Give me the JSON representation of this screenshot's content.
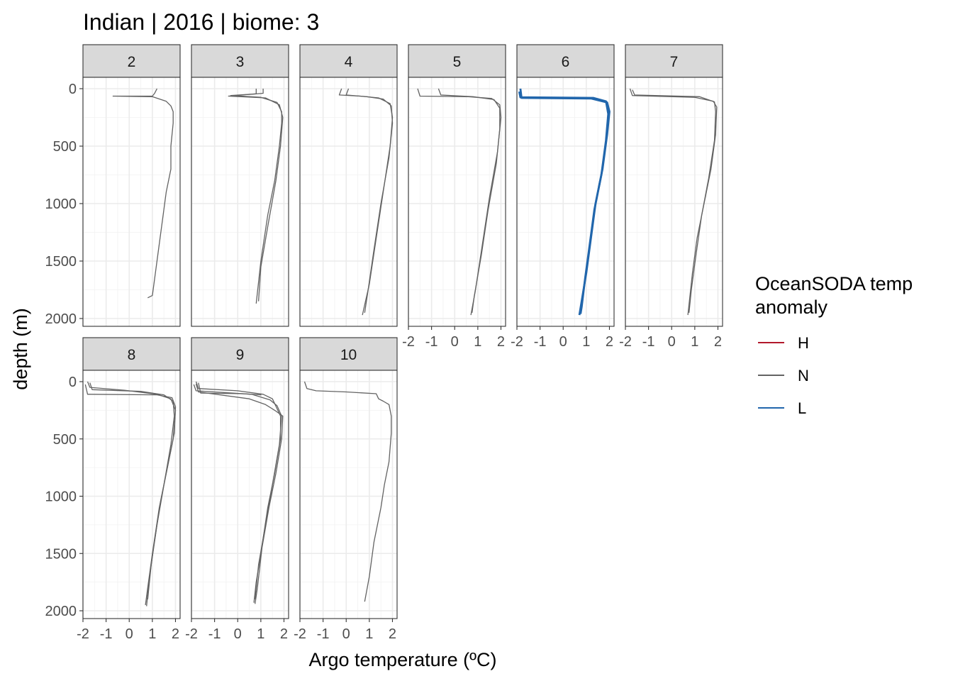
{
  "title": "Indian | 2016 | biome: 3",
  "xlabel": "Argo temperature (ºC)",
  "ylabel": "depth (m)",
  "legend": {
    "title_lines": [
      "OceanSODA temp",
      "anomaly"
    ],
    "items": [
      {
        "label": "H",
        "color": "#b2182b"
      },
      {
        "label": "N",
        "color": "#636363"
      },
      {
        "label": "L",
        "color": "#2166ac"
      }
    ]
  },
  "chart_data": {
    "type": "line",
    "facet_by": "month",
    "x_axis": {
      "label": "Argo temperature (ºC)",
      "range": [
        -2,
        2.2
      ],
      "ticks": [
        -2,
        -1,
        0,
        1,
        2
      ]
    },
    "y_axis": {
      "label": "depth (m)",
      "range": [
        2000,
        0
      ],
      "reversed": true,
      "ticks": [
        0,
        500,
        1000,
        1500,
        2000
      ]
    },
    "grid": true,
    "legend_position": "right",
    "legend_title": "OceanSODA temp anomaly",
    "legend_entries": [
      "H",
      "N",
      "L"
    ],
    "panels": [
      {
        "label": "2",
        "profiles": [
          {
            "anomaly": "N",
            "points": [
              [
                1.2,
                0
              ],
              [
                1.1,
                40
              ],
              [
                1.0,
                65
              ],
              [
                -0.7,
                65
              ],
              [
                1.0,
                70
              ],
              [
                1.6,
                110
              ],
              [
                1.8,
                150
              ],
              [
                1.9,
                200
              ],
              [
                1.9,
                300
              ],
              [
                1.8,
                500
              ],
              [
                1.8,
                700
              ],
              [
                1.6,
                900
              ],
              [
                1.4,
                1200
              ],
              [
                1.2,
                1500
              ],
              [
                1.0,
                1800
              ],
              [
                0.8,
                1820
              ]
            ]
          }
        ]
      },
      {
        "label": "3",
        "profiles": [
          {
            "anomaly": "N",
            "points": [
              [
                0.8,
                0
              ],
              [
                0.8,
                45
              ],
              [
                -0.3,
                60
              ],
              [
                1.0,
                75
              ],
              [
                1.7,
                120
              ],
              [
                1.9,
                200
              ],
              [
                1.9,
                300
              ],
              [
                1.8,
                500
              ],
              [
                1.6,
                800
              ],
              [
                1.3,
                1100
              ],
              [
                1.0,
                1500
              ],
              [
                0.8,
                1870
              ]
            ]
          },
          {
            "anomaly": "N",
            "points": [
              [
                1.1,
                0
              ],
              [
                1.1,
                40
              ],
              [
                -0.4,
                65
              ],
              [
                1.2,
                80
              ],
              [
                1.8,
                140
              ],
              [
                1.95,
                250
              ],
              [
                1.85,
                500
              ],
              [
                1.65,
                800
              ],
              [
                1.3,
                1200
              ],
              [
                1.0,
                1550
              ],
              [
                0.9,
                1850
              ]
            ]
          }
        ]
      },
      {
        "label": "4",
        "profiles": [
          {
            "anomaly": "N",
            "points": [
              [
                -0.2,
                0
              ],
              [
                -0.3,
                55
              ],
              [
                0.6,
                65
              ],
              [
                1.4,
                80
              ],
              [
                1.9,
                130
              ],
              [
                2.0,
                250
              ],
              [
                1.9,
                500
              ],
              [
                1.6,
                900
              ],
              [
                1.3,
                1300
              ],
              [
                1.0,
                1700
              ],
              [
                0.7,
                1970
              ]
            ]
          },
          {
            "anomaly": "N",
            "points": [
              [
                0.1,
                0
              ],
              [
                0.0,
                55
              ],
              [
                0.9,
                70
              ],
              [
                1.6,
                90
              ],
              [
                1.95,
                150
              ],
              [
                2.0,
                300
              ],
              [
                1.85,
                600
              ],
              [
                1.5,
                1000
              ],
              [
                1.2,
                1400
              ],
              [
                0.95,
                1750
              ],
              [
                0.8,
                1950
              ]
            ]
          }
        ]
      },
      {
        "label": "5",
        "profiles": [
          {
            "anomaly": "N",
            "points": [
              [
                -1.6,
                0
              ],
              [
                -1.5,
                65
              ],
              [
                0.6,
                70
              ],
              [
                1.6,
                85
              ],
              [
                1.95,
                140
              ],
              [
                2.0,
                250
              ],
              [
                1.85,
                550
              ],
              [
                1.5,
                950
              ],
              [
                1.2,
                1350
              ],
              [
                0.9,
                1750
              ],
              [
                0.7,
                1970
              ]
            ]
          },
          {
            "anomaly": "N",
            "points": [
              [
                -0.7,
                0
              ],
              [
                -0.6,
                55
              ],
              [
                0.8,
                70
              ],
              [
                1.7,
                95
              ],
              [
                1.95,
                170
              ],
              [
                1.95,
                350
              ],
              [
                1.8,
                650
              ],
              [
                1.45,
                1050
              ],
              [
                1.15,
                1450
              ],
              [
                0.85,
                1800
              ],
              [
                0.75,
                1950
              ]
            ]
          }
        ]
      },
      {
        "label": "6",
        "profiles": [
          {
            "anomaly": "L",
            "points": [
              [
                -1.85,
                0
              ],
              [
                -1.8,
                80
              ],
              [
                1.2,
                85
              ],
              [
                1.9,
                120
              ],
              [
                2.0,
                200
              ],
              [
                1.9,
                400
              ],
              [
                1.7,
                700
              ],
              [
                1.4,
                1000
              ],
              [
                1.2,
                1300
              ],
              [
                1.0,
                1600
              ],
              [
                0.8,
                1850
              ],
              [
                0.7,
                1970
              ]
            ]
          },
          {
            "anomaly": "L",
            "points": [
              [
                -1.9,
                25
              ],
              [
                -1.85,
                75
              ],
              [
                1.3,
                80
              ],
              [
                1.85,
                110
              ],
              [
                1.95,
                220
              ],
              [
                1.85,
                450
              ],
              [
                1.65,
                750
              ],
              [
                1.35,
                1050
              ],
              [
                1.15,
                1350
              ],
              [
                0.95,
                1650
              ],
              [
                0.8,
                1900
              ],
              [
                0.75,
                1960
              ]
            ]
          }
        ]
      },
      {
        "label": "7",
        "profiles": [
          {
            "anomaly": "N",
            "points": [
              [
                -1.8,
                0
              ],
              [
                -1.7,
                60
              ],
              [
                1.0,
                75
              ],
              [
                1.8,
                110
              ],
              [
                1.95,
                160
              ],
              [
                1.9,
                400
              ],
              [
                1.7,
                700
              ],
              [
                1.4,
                1000
              ],
              [
                1.1,
                1300
              ],
              [
                0.9,
                1600
              ],
              [
                0.7,
                1970
              ]
            ]
          },
          {
            "anomaly": "N",
            "points": [
              [
                -1.7,
                10
              ],
              [
                -1.6,
                55
              ],
              [
                1.2,
                70
              ],
              [
                1.85,
                115
              ],
              [
                1.9,
                200
              ],
              [
                1.85,
                450
              ],
              [
                1.6,
                780
              ],
              [
                1.3,
                1100
              ],
              [
                1.05,
                1450
              ],
              [
                0.85,
                1750
              ],
              [
                0.75,
                1950
              ]
            ]
          }
        ]
      },
      {
        "label": "8",
        "profiles": [
          {
            "anomaly": "N",
            "points": [
              [
                -1.8,
                0
              ],
              [
                -1.7,
                50
              ],
              [
                -0.2,
                75
              ],
              [
                1.2,
                110
              ],
              [
                1.8,
                150
              ],
              [
                2.0,
                250
              ],
              [
                1.9,
                500
              ],
              [
                1.6,
                800
              ],
              [
                1.3,
                1100
              ],
              [
                1.0,
                1500
              ],
              [
                0.8,
                1800
              ],
              [
                0.7,
                1950
              ]
            ]
          },
          {
            "anomaly": "N",
            "points": [
              [
                -1.9,
                25
              ],
              [
                -1.8,
                110
              ],
              [
                1.2,
                115
              ],
              [
                1.85,
                140
              ],
              [
                2.0,
                220
              ],
              [
                1.95,
                450
              ],
              [
                1.65,
                750
              ],
              [
                1.35,
                1050
              ],
              [
                1.05,
                1450
              ],
              [
                0.85,
                1750
              ],
              [
                0.75,
                1960
              ]
            ]
          },
          {
            "anomaly": "N",
            "points": [
              [
                -1.7,
                10
              ],
              [
                -1.6,
                70
              ],
              [
                0.5,
                85
              ],
              [
                1.5,
                115
              ],
              [
                1.9,
                170
              ],
              [
                1.95,
                300
              ],
              [
                1.8,
                550
              ],
              [
                1.5,
                900
              ],
              [
                1.2,
                1250
              ],
              [
                0.95,
                1600
              ],
              [
                0.8,
                1900
              ]
            ]
          }
        ]
      },
      {
        "label": "9",
        "profiles": [
          {
            "anomaly": "N",
            "points": [
              [
                -1.8,
                0
              ],
              [
                -1.7,
                60
              ],
              [
                0.0,
                80
              ],
              [
                1.1,
                110
              ],
              [
                1.5,
                150
              ],
              [
                1.85,
                300
              ],
              [
                1.85,
                500
              ],
              [
                1.6,
                800
              ],
              [
                1.3,
                1100
              ],
              [
                1.0,
                1500
              ],
              [
                0.8,
                1750
              ],
              [
                0.7,
                1930
              ]
            ]
          },
          {
            "anomaly": "N",
            "points": [
              [
                -1.9,
                25
              ],
              [
                -1.8,
                80
              ],
              [
                0.6,
                110
              ],
              [
                1.4,
                160
              ],
              [
                1.7,
                210
              ],
              [
                1.9,
                300
              ],
              [
                1.8,
                550
              ],
              [
                1.5,
                900
              ],
              [
                1.2,
                1250
              ],
              [
                0.9,
                1600
              ],
              [
                0.75,
                1900
              ]
            ]
          },
          {
            "anomaly": "N",
            "points": [
              [
                -1.7,
                10
              ],
              [
                -1.6,
                100
              ],
              [
                0.2,
                105
              ],
              [
                1.0,
                115
              ],
              [
                1.0,
                120
              ]
            ]
          },
          {
            "anomaly": "N",
            "points": [
              [
                -1.8,
                20
              ],
              [
                -1.7,
                90
              ],
              [
                0.5,
                150
              ],
              [
                1.2,
                200
              ],
              [
                1.6,
                250
              ],
              [
                1.95,
                300
              ],
              [
                1.9,
                500
              ],
              [
                1.65,
                800
              ],
              [
                1.35,
                1100
              ],
              [
                1.05,
                1450
              ],
              [
                0.85,
                1800
              ],
              [
                0.75,
                1940
              ]
            ]
          }
        ]
      },
      {
        "label": "10",
        "profiles": [
          {
            "anomaly": "N",
            "points": [
              [
                -1.8,
                0
              ],
              [
                -1.7,
                60
              ],
              [
                -1.3,
                80
              ],
              [
                0.0,
                90
              ],
              [
                1.3,
                105
              ],
              [
                1.4,
                150
              ],
              [
                1.6,
                170
              ],
              [
                1.85,
                200
              ],
              [
                1.95,
                300
              ],
              [
                1.95,
                450
              ],
              [
                1.85,
                700
              ],
              [
                1.65,
                900
              ],
              [
                1.5,
                1100
              ],
              [
                1.2,
                1400
              ],
              [
                1.0,
                1700
              ],
              [
                0.8,
                1920
              ]
            ]
          }
        ]
      }
    ]
  }
}
